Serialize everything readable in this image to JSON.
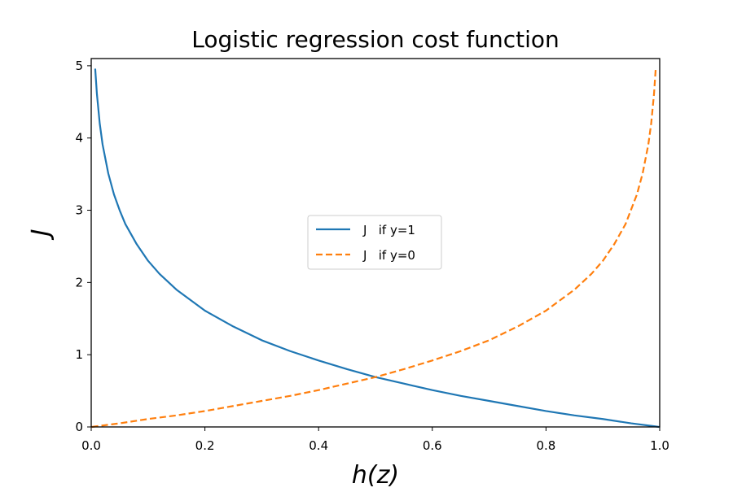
{
  "chart_data": {
    "type": "line",
    "title": "Logistic regression cost function",
    "xlabel": "h(z)",
    "ylabel": "J",
    "xlim": [
      0.0,
      1.0
    ],
    "ylim": [
      0,
      5.1
    ],
    "xticks": [
      0.0,
      0.2,
      0.4,
      0.6,
      0.8,
      1.0
    ],
    "xtick_labels": [
      "0.0",
      "0.2",
      "0.4",
      "0.6",
      "0.8",
      "1.0"
    ],
    "yticks": [
      0,
      1,
      2,
      3,
      4,
      5
    ],
    "ytick_labels": [
      "0",
      "1",
      "2",
      "3",
      "4",
      "5"
    ],
    "grid": false,
    "legend_position": "center",
    "series": [
      {
        "name": "J   if y=1",
        "color": "#1f77b4",
        "linestyle": "solid",
        "x": [
          0.007,
          0.01,
          0.015,
          0.02,
          0.03,
          0.04,
          0.05,
          0.06,
          0.08,
          0.1,
          0.12,
          0.15,
          0.2,
          0.25,
          0.3,
          0.35,
          0.4,
          0.45,
          0.5,
          0.55,
          0.6,
          0.65,
          0.7,
          0.75,
          0.8,
          0.85,
          0.9,
          0.95,
          0.99,
          0.999
        ],
        "y": [
          4.96,
          4.61,
          4.2,
          3.91,
          3.51,
          3.22,
          3.0,
          2.81,
          2.53,
          2.3,
          2.12,
          1.9,
          1.61,
          1.39,
          1.2,
          1.05,
          0.92,
          0.8,
          0.69,
          0.6,
          0.51,
          0.43,
          0.36,
          0.29,
          0.22,
          0.16,
          0.11,
          0.05,
          0.01,
          0.0
        ]
      },
      {
        "name": "J   if y=0",
        "color": "#ff7f0e",
        "linestyle": "dashed",
        "x": [
          0.001,
          0.01,
          0.05,
          0.1,
          0.15,
          0.2,
          0.25,
          0.3,
          0.35,
          0.4,
          0.45,
          0.5,
          0.55,
          0.6,
          0.65,
          0.7,
          0.75,
          0.8,
          0.85,
          0.88,
          0.9,
          0.92,
          0.94,
          0.96,
          0.97,
          0.98,
          0.985,
          0.99,
          0.993
        ],
        "y": [
          0.0,
          0.01,
          0.05,
          0.11,
          0.16,
          0.22,
          0.29,
          0.36,
          0.43,
          0.51,
          0.6,
          0.69,
          0.8,
          0.92,
          1.05,
          1.2,
          1.39,
          1.61,
          1.9,
          2.12,
          2.3,
          2.53,
          2.81,
          3.22,
          3.51,
          3.91,
          4.2,
          4.61,
          4.96
        ]
      }
    ]
  }
}
